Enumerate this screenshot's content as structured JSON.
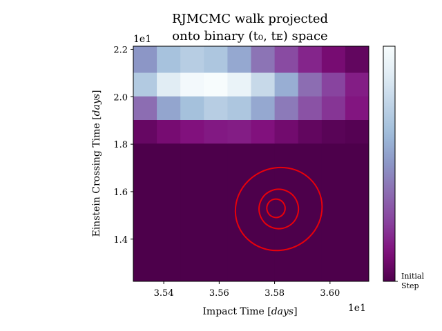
{
  "chart_data": {
    "type": "heatmap",
    "title_line1": "RJMCMC walk projected",
    "title_line2": "onto binary (t₀, tᴇ) space",
    "xlabel": "Impact Time [days]",
    "ylabel": "Einstein Crossing Time [days]",
    "x_offset_text": "1e1",
    "y_offset_text": "1e1",
    "xlim": [
      3.529,
      3.614
    ],
    "ylim": [
      1.222,
      2.213
    ],
    "x_ticks": [
      3.54,
      3.56,
      3.58,
      3.6
    ],
    "x_tick_labels": [
      "3.54",
      "3.56",
      "3.58",
      "3.60"
    ],
    "y_ticks": [
      1.4,
      1.6,
      1.8,
      2.0,
      2.2
    ],
    "y_tick_labels": [
      "1.4",
      "1.6",
      "1.8",
      "2.0",
      "2.2"
    ],
    "colormap": "BuPu_r",
    "colorbar_label": "Initial Step",
    "colorbar_range": [
      0,
      1
    ],
    "heatmap": {
      "x_edges": [
        3.529,
        3.5375,
        3.546,
        3.5545,
        3.563,
        3.5715,
        3.58,
        3.5885,
        3.597,
        3.6055,
        3.614
      ],
      "y_edges": [
        1.222,
        1.804,
        1.9035,
        2.003,
        2.1025,
        2.213
      ],
      "values": [
        [
          0.0,
          0.0,
          0.0,
          0.0,
          0.0,
          0.0,
          0.0,
          0.0,
          0.0,
          0.0
        ],
        [
          0.06,
          0.1,
          0.13,
          0.15,
          0.16,
          0.13,
          0.09,
          0.05,
          0.03,
          0.02
        ],
        [
          0.38,
          0.55,
          0.65,
          0.72,
          0.68,
          0.56,
          0.42,
          0.3,
          0.22,
          0.14
        ],
        [
          0.7,
          0.88,
          0.98,
          1.0,
          0.93,
          0.78,
          0.58,
          0.38,
          0.26,
          0.16
        ],
        [
          0.5,
          0.66,
          0.72,
          0.68,
          0.56,
          0.4,
          0.28,
          0.18,
          0.1,
          0.05
        ]
      ]
    },
    "contours": [
      {
        "cx": 3.5805,
        "cy": 1.53,
        "rx": 0.0033,
        "ry": 0.039,
        "angle": -24
      },
      {
        "cx": 3.5815,
        "cy": 1.527,
        "rx": 0.0071,
        "ry": 0.083,
        "angle": -24
      },
      {
        "cx": 3.5815,
        "cy": 1.527,
        "rx": 0.0158,
        "ry": 0.173,
        "angle": -24
      }
    ],
    "colors": {
      "contour": "#e8000b"
    }
  }
}
